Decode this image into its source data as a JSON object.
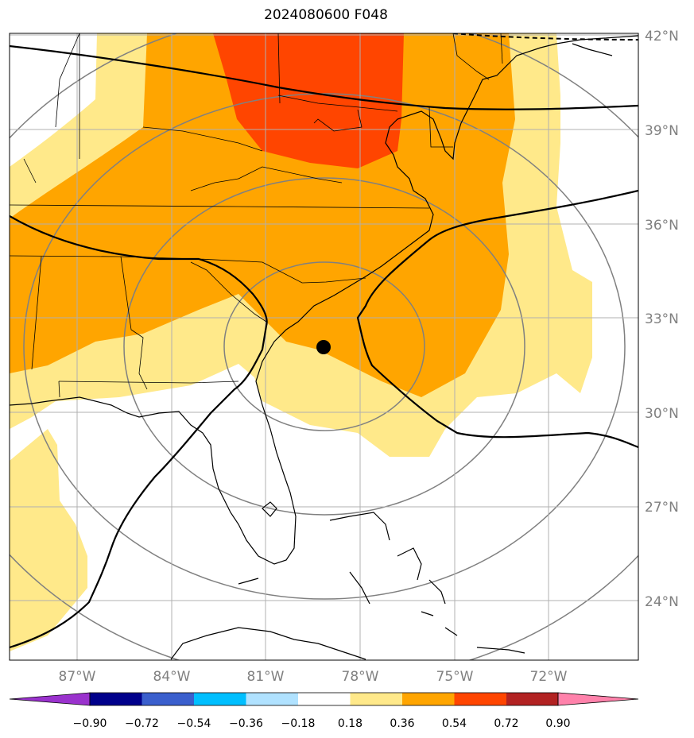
{
  "title": "2024080600 F048",
  "map": {
    "lat_ticks": [
      "42°N",
      "39°N",
      "36°N",
      "33°N",
      "30°N",
      "27°N",
      "24°N"
    ],
    "lon_ticks": [
      "87°W",
      "84°W",
      "81°W",
      "78°W",
      "75°W",
      "72°W"
    ],
    "storm_center": {
      "lat": 32.1,
      "lon": -79.2
    },
    "fill_colors": {
      "0.18-0.36": "#ffe98a",
      "0.36-0.54": "#ffa500",
      "0.54-0.72": "#ff4500"
    }
  },
  "colorbar": {
    "colors": [
      "#9a32cd",
      "#00008b",
      "#3a5fcd",
      "#00bfff",
      "#b0e2ff",
      "#ffffff",
      "#ffe98a",
      "#ffa500",
      "#ff4500",
      "#b22222",
      "#ff82ab"
    ],
    "labels": [
      "−0.90",
      "−0.72",
      "−0.54",
      "−0.36",
      "−0.18",
      "0.18",
      "0.36",
      "0.54",
      "0.72",
      "0.90"
    ]
  }
}
